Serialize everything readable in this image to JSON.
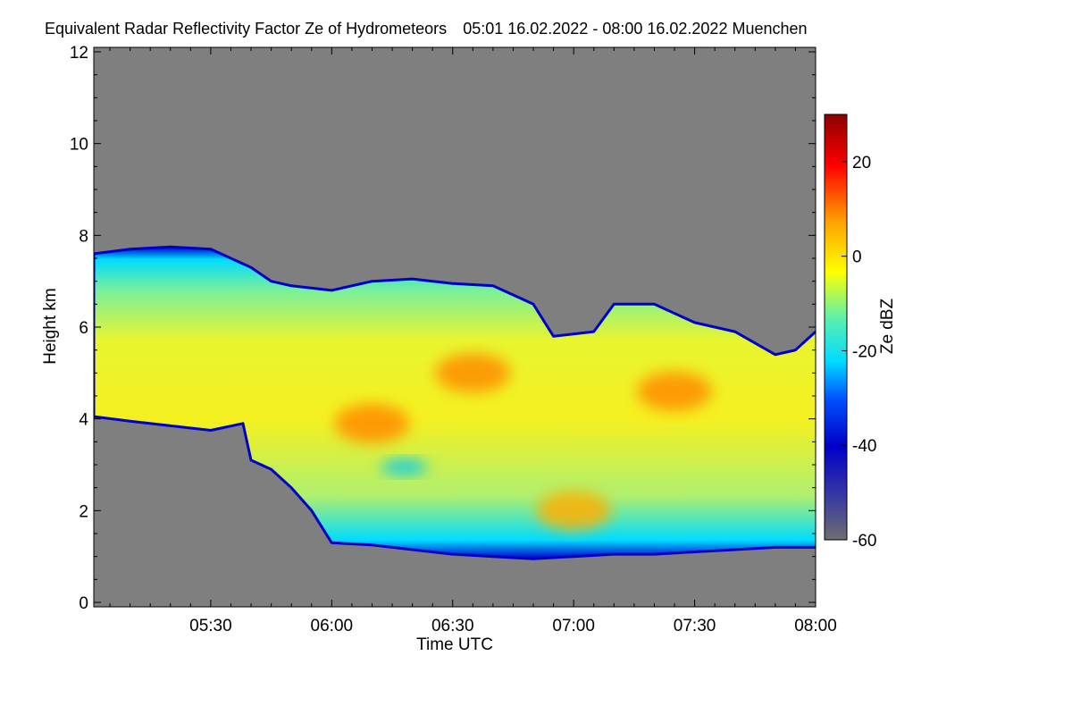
{
  "title": "Equivalent Radar Reflectivity Factor Ze of Hydrometeors",
  "subtitle": "05:01 16.02.2022 - 08:00 16.02.2022 Muenchen",
  "chart_data": {
    "type": "heatmap",
    "xlabel": "Time UTC",
    "ylabel": "Height km",
    "xlim": [
      "05:01",
      "08:00"
    ],
    "ylim": [
      0,
      12
    ],
    "x_ticks": [
      "05:30",
      "06:00",
      "06:30",
      "07:00",
      "07:30",
      "08:00"
    ],
    "y_ticks": [
      0,
      2,
      4,
      6,
      8,
      10,
      12
    ],
    "colorbar": {
      "label": "Ze dBZ",
      "range": [
        -60,
        30
      ],
      "ticks": [
        -60,
        -40,
        -20,
        0,
        20
      ]
    },
    "background_color": "#7f7f7f",
    "colormap": [
      "#6e6e6e",
      "#0000c8",
      "#0050ff",
      "#00dcff",
      "#5af0b0",
      "#ffff00",
      "#ffa000",
      "#ff0000",
      "#8b0000"
    ],
    "cloud_top_km": [
      [
        "05:01",
        7.6
      ],
      [
        "05:10",
        7.7
      ],
      [
        "05:20",
        7.75
      ],
      [
        "05:30",
        7.7
      ],
      [
        "05:40",
        7.3
      ],
      [
        "05:45",
        7.0
      ],
      [
        "05:50",
        6.9
      ],
      [
        "06:00",
        6.8
      ],
      [
        "06:10",
        7.0
      ],
      [
        "06:20",
        7.05
      ],
      [
        "06:30",
        6.95
      ],
      [
        "06:40",
        6.9
      ],
      [
        "06:50",
        6.5
      ],
      [
        "06:55",
        5.8
      ],
      [
        "07:05",
        5.9
      ],
      [
        "07:10",
        6.5
      ],
      [
        "07:20",
        6.5
      ],
      [
        "07:30",
        6.1
      ],
      [
        "07:40",
        5.9
      ],
      [
        "07:50",
        5.4
      ],
      [
        "07:55",
        5.5
      ],
      [
        "08:00",
        5.9
      ]
    ],
    "cloud_base_km": [
      [
        "05:01",
        4.05
      ],
      [
        "05:10",
        3.95
      ],
      [
        "05:20",
        3.85
      ],
      [
        "05:30",
        3.75
      ],
      [
        "05:38",
        3.9
      ],
      [
        "05:40",
        3.1
      ],
      [
        "05:45",
        2.9
      ],
      [
        "05:50",
        2.5
      ],
      [
        "05:55",
        2.0
      ],
      [
        "06:00",
        1.3
      ],
      [
        "06:10",
        1.25
      ],
      [
        "06:20",
        1.15
      ],
      [
        "06:30",
        1.05
      ],
      [
        "06:40",
        1.0
      ],
      [
        "06:50",
        0.95
      ],
      [
        "07:00",
        1.0
      ],
      [
        "07:10",
        1.05
      ],
      [
        "07:20",
        1.05
      ],
      [
        "07:30",
        1.1
      ],
      [
        "07:40",
        1.15
      ],
      [
        "07:50",
        1.2
      ],
      [
        "08:00",
        1.2
      ]
    ],
    "max_reflectivity_regions": [
      {
        "time": "06:35",
        "height_km": 5.0,
        "ze_dbz": 10
      },
      {
        "time": "06:10",
        "height_km": 3.9,
        "ze_dbz": 6
      },
      {
        "time": "07:25",
        "height_km": 4.6,
        "ze_dbz": 5
      },
      {
        "time": "07:00",
        "height_km": 2.0,
        "ze_dbz": 4
      }
    ]
  }
}
